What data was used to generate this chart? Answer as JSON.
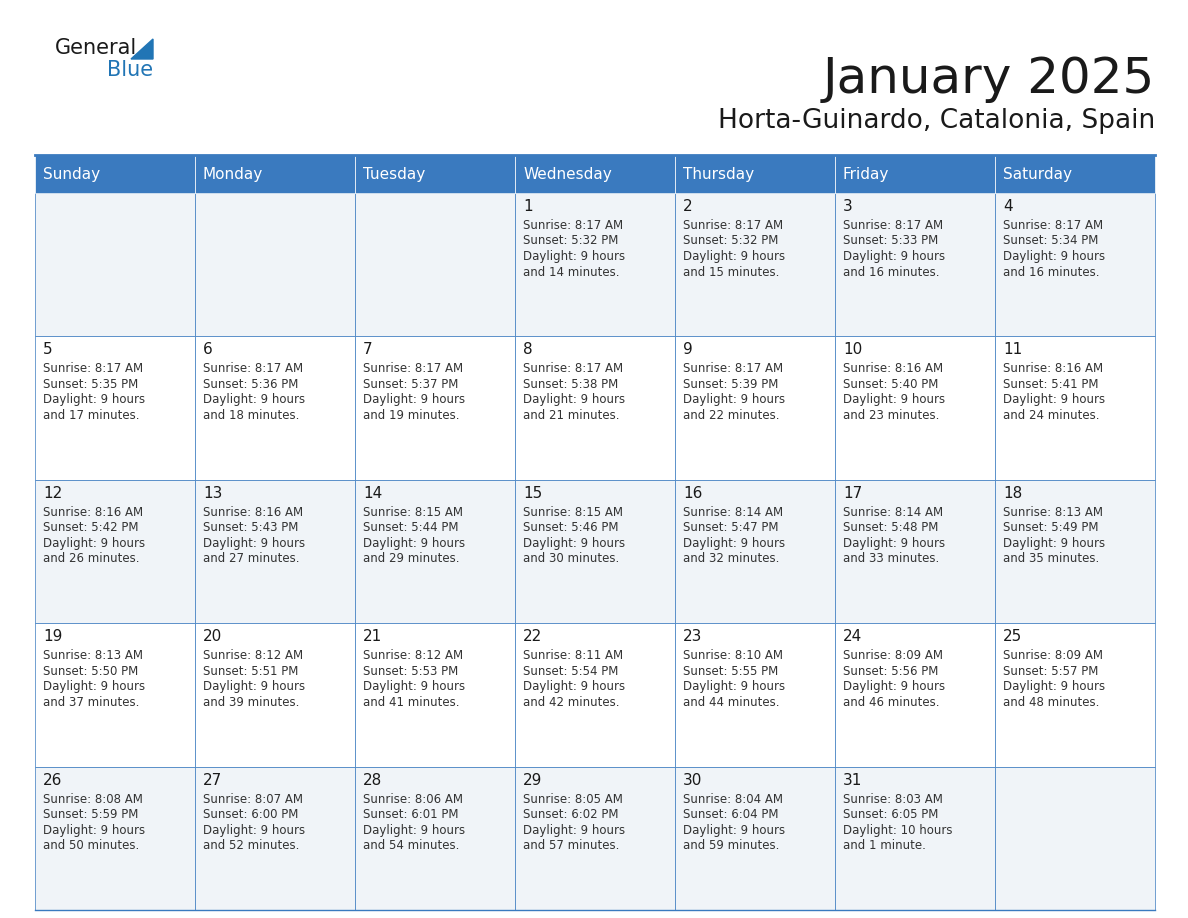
{
  "title": "January 2025",
  "subtitle": "Horta-Guinardo, Catalonia, Spain",
  "header_color": "#3a7abf",
  "header_text_color": "#ffffff",
  "cell_bg_color": "#ffffff",
  "alt_cell_bg_color": "#f0f4f8",
  "border_color": "#3a7abf",
  "text_color": "#333333",
  "day_names": [
    "Sunday",
    "Monday",
    "Tuesday",
    "Wednesday",
    "Thursday",
    "Friday",
    "Saturday"
  ],
  "weeks": [
    [
      {
        "day": "",
        "sunrise": "",
        "sunset": "",
        "daylight": ""
      },
      {
        "day": "",
        "sunrise": "",
        "sunset": "",
        "daylight": ""
      },
      {
        "day": "",
        "sunrise": "",
        "sunset": "",
        "daylight": ""
      },
      {
        "day": "1",
        "sunrise": "8:17 AM",
        "sunset": "5:32 PM",
        "daylight": "9 hours and 14 minutes."
      },
      {
        "day": "2",
        "sunrise": "8:17 AM",
        "sunset": "5:32 PM",
        "daylight": "9 hours and 15 minutes."
      },
      {
        "day": "3",
        "sunrise": "8:17 AM",
        "sunset": "5:33 PM",
        "daylight": "9 hours and 16 minutes."
      },
      {
        "day": "4",
        "sunrise": "8:17 AM",
        "sunset": "5:34 PM",
        "daylight": "9 hours and 16 minutes."
      }
    ],
    [
      {
        "day": "5",
        "sunrise": "8:17 AM",
        "sunset": "5:35 PM",
        "daylight": "9 hours and 17 minutes."
      },
      {
        "day": "6",
        "sunrise": "8:17 AM",
        "sunset": "5:36 PM",
        "daylight": "9 hours and 18 minutes."
      },
      {
        "day": "7",
        "sunrise": "8:17 AM",
        "sunset": "5:37 PM",
        "daylight": "9 hours and 19 minutes."
      },
      {
        "day": "8",
        "sunrise": "8:17 AM",
        "sunset": "5:38 PM",
        "daylight": "9 hours and 21 minutes."
      },
      {
        "day": "9",
        "sunrise": "8:17 AM",
        "sunset": "5:39 PM",
        "daylight": "9 hours and 22 minutes."
      },
      {
        "day": "10",
        "sunrise": "8:16 AM",
        "sunset": "5:40 PM",
        "daylight": "9 hours and 23 minutes."
      },
      {
        "day": "11",
        "sunrise": "8:16 AM",
        "sunset": "5:41 PM",
        "daylight": "9 hours and 24 minutes."
      }
    ],
    [
      {
        "day": "12",
        "sunrise": "8:16 AM",
        "sunset": "5:42 PM",
        "daylight": "9 hours and 26 minutes."
      },
      {
        "day": "13",
        "sunrise": "8:16 AM",
        "sunset": "5:43 PM",
        "daylight": "9 hours and 27 minutes."
      },
      {
        "day": "14",
        "sunrise": "8:15 AM",
        "sunset": "5:44 PM",
        "daylight": "9 hours and 29 minutes."
      },
      {
        "day": "15",
        "sunrise": "8:15 AM",
        "sunset": "5:46 PM",
        "daylight": "9 hours and 30 minutes."
      },
      {
        "day": "16",
        "sunrise": "8:14 AM",
        "sunset": "5:47 PM",
        "daylight": "9 hours and 32 minutes."
      },
      {
        "day": "17",
        "sunrise": "8:14 AM",
        "sunset": "5:48 PM",
        "daylight": "9 hours and 33 minutes."
      },
      {
        "day": "18",
        "sunrise": "8:13 AM",
        "sunset": "5:49 PM",
        "daylight": "9 hours and 35 minutes."
      }
    ],
    [
      {
        "day": "19",
        "sunrise": "8:13 AM",
        "sunset": "5:50 PM",
        "daylight": "9 hours and 37 minutes."
      },
      {
        "day": "20",
        "sunrise": "8:12 AM",
        "sunset": "5:51 PM",
        "daylight": "9 hours and 39 minutes."
      },
      {
        "day": "21",
        "sunrise": "8:12 AM",
        "sunset": "5:53 PM",
        "daylight": "9 hours and 41 minutes."
      },
      {
        "day": "22",
        "sunrise": "8:11 AM",
        "sunset": "5:54 PM",
        "daylight": "9 hours and 42 minutes."
      },
      {
        "day": "23",
        "sunrise": "8:10 AM",
        "sunset": "5:55 PM",
        "daylight": "9 hours and 44 minutes."
      },
      {
        "day": "24",
        "sunrise": "8:09 AM",
        "sunset": "5:56 PM",
        "daylight": "9 hours and 46 minutes."
      },
      {
        "day": "25",
        "sunrise": "8:09 AM",
        "sunset": "5:57 PM",
        "daylight": "9 hours and 48 minutes."
      }
    ],
    [
      {
        "day": "26",
        "sunrise": "8:08 AM",
        "sunset": "5:59 PM",
        "daylight": "9 hours and 50 minutes."
      },
      {
        "day": "27",
        "sunrise": "8:07 AM",
        "sunset": "6:00 PM",
        "daylight": "9 hours and 52 minutes."
      },
      {
        "day": "28",
        "sunrise": "8:06 AM",
        "sunset": "6:01 PM",
        "daylight": "9 hours and 54 minutes."
      },
      {
        "day": "29",
        "sunrise": "8:05 AM",
        "sunset": "6:02 PM",
        "daylight": "9 hours and 57 minutes."
      },
      {
        "day": "30",
        "sunrise": "8:04 AM",
        "sunset": "6:04 PM",
        "daylight": "9 hours and 59 minutes."
      },
      {
        "day": "31",
        "sunrise": "8:03 AM",
        "sunset": "6:05 PM",
        "daylight": "10 hours and 1 minute."
      },
      {
        "day": "",
        "sunrise": "",
        "sunset": "",
        "daylight": ""
      }
    ]
  ]
}
